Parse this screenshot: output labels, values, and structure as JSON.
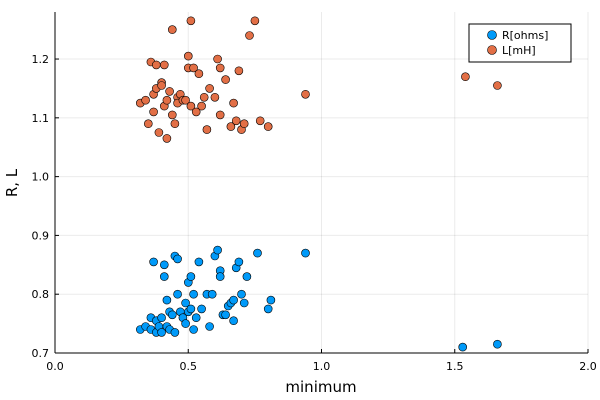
{
  "chart_data": {
    "type": "scatter",
    "xlabel": "minimum",
    "ylabel": "R, L",
    "xlim": [
      0.0,
      2.0
    ],
    "ylim": [
      0.7,
      1.28
    ],
    "xticks": [
      "0.0",
      "0.5",
      "1.0",
      "1.5",
      "2.0"
    ],
    "yticks": [
      "0.7",
      "0.8",
      "0.9",
      "1.0",
      "1.1",
      "1.2"
    ],
    "grid": true,
    "legend_position": "top-right",
    "series": [
      {
        "name": "R[ohms]",
        "color": "#009af9",
        "points": [
          [
            0.32,
            0.74
          ],
          [
            0.34,
            0.745
          ],
          [
            0.36,
            0.76
          ],
          [
            0.36,
            0.74
          ],
          [
            0.37,
            0.855
          ],
          [
            0.38,
            0.755
          ],
          [
            0.38,
            0.735
          ],
          [
            0.39,
            0.745
          ],
          [
            0.4,
            0.735
          ],
          [
            0.4,
            0.76
          ],
          [
            0.41,
            0.85
          ],
          [
            0.41,
            0.83
          ],
          [
            0.42,
            0.79
          ],
          [
            0.42,
            0.745
          ],
          [
            0.43,
            0.77
          ],
          [
            0.43,
            0.74
          ],
          [
            0.44,
            0.765
          ],
          [
            0.45,
            0.735
          ],
          [
            0.45,
            0.865
          ],
          [
            0.46,
            0.86
          ],
          [
            0.46,
            0.8
          ],
          [
            0.47,
            0.77
          ],
          [
            0.48,
            0.76
          ],
          [
            0.49,
            0.75
          ],
          [
            0.49,
            0.785
          ],
          [
            0.5,
            0.77
          ],
          [
            0.5,
            0.82
          ],
          [
            0.51,
            0.775
          ],
          [
            0.51,
            0.83
          ],
          [
            0.52,
            0.8
          ],
          [
            0.52,
            0.74
          ],
          [
            0.53,
            0.76
          ],
          [
            0.54,
            0.855
          ],
          [
            0.55,
            0.775
          ],
          [
            0.57,
            0.8
          ],
          [
            0.58,
            0.745
          ],
          [
            0.59,
            0.8
          ],
          [
            0.6,
            0.865
          ],
          [
            0.61,
            0.875
          ],
          [
            0.62,
            0.84
          ],
          [
            0.62,
            0.83
          ],
          [
            0.63,
            0.765
          ],
          [
            0.64,
            0.765
          ],
          [
            0.65,
            0.78
          ],
          [
            0.66,
            0.785
          ],
          [
            0.67,
            0.755
          ],
          [
            0.67,
            0.79
          ],
          [
            0.68,
            0.845
          ],
          [
            0.69,
            0.855
          ],
          [
            0.7,
            0.8
          ],
          [
            0.71,
            0.785
          ],
          [
            0.72,
            0.83
          ],
          [
            0.76,
            0.87
          ],
          [
            0.8,
            0.775
          ],
          [
            0.81,
            0.79
          ],
          [
            0.94,
            0.87
          ],
          [
            1.53,
            0.71
          ],
          [
            1.66,
            0.715
          ]
        ]
      },
      {
        "name": "L[mH]",
        "color": "#e26f46",
        "points": [
          [
            0.32,
            1.125
          ],
          [
            0.34,
            1.13
          ],
          [
            0.35,
            1.09
          ],
          [
            0.36,
            1.195
          ],
          [
            0.37,
            1.14
          ],
          [
            0.37,
            1.11
          ],
          [
            0.38,
            1.15
          ],
          [
            0.38,
            1.19
          ],
          [
            0.39,
            1.075
          ],
          [
            0.4,
            1.16
          ],
          [
            0.4,
            1.155
          ],
          [
            0.41,
            1.19
          ],
          [
            0.41,
            1.12
          ],
          [
            0.42,
            1.065
          ],
          [
            0.42,
            1.13
          ],
          [
            0.43,
            1.145
          ],
          [
            0.44,
            1.25
          ],
          [
            0.44,
            1.105
          ],
          [
            0.45,
            1.09
          ],
          [
            0.46,
            1.135
          ],
          [
            0.46,
            1.125
          ],
          [
            0.47,
            1.14
          ],
          [
            0.48,
            1.13
          ],
          [
            0.49,
            1.13
          ],
          [
            0.5,
            1.205
          ],
          [
            0.5,
            1.185
          ],
          [
            0.51,
            1.265
          ],
          [
            0.51,
            1.12
          ],
          [
            0.52,
            1.185
          ],
          [
            0.53,
            1.11
          ],
          [
            0.54,
            1.175
          ],
          [
            0.55,
            1.12
          ],
          [
            0.56,
            1.135
          ],
          [
            0.57,
            1.08
          ],
          [
            0.58,
            1.15
          ],
          [
            0.6,
            1.135
          ],
          [
            0.61,
            1.2
          ],
          [
            0.62,
            1.185
          ],
          [
            0.62,
            1.105
          ],
          [
            0.64,
            1.165
          ],
          [
            0.66,
            1.085
          ],
          [
            0.67,
            1.125
          ],
          [
            0.68,
            1.095
          ],
          [
            0.69,
            1.18
          ],
          [
            0.7,
            1.08
          ],
          [
            0.71,
            1.09
          ],
          [
            0.73,
            1.24
          ],
          [
            0.75,
            1.265
          ],
          [
            0.77,
            1.095
          ],
          [
            0.8,
            1.085
          ],
          [
            0.94,
            1.14
          ],
          [
            1.54,
            1.17
          ],
          [
            1.66,
            1.155
          ]
        ]
      }
    ]
  }
}
